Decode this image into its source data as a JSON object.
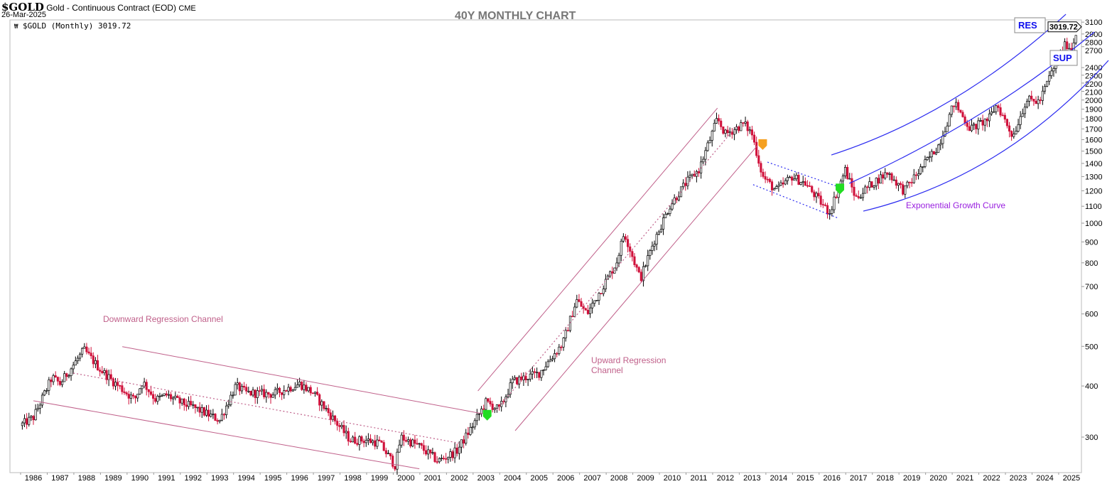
{
  "header": {
    "symbol": "$GOLD",
    "description": "Gold - Continuous Contract (EOD)",
    "exchange": "CME",
    "date": "26-Mar-2025",
    "legend": "$GOLD (Monthly) 3019.72"
  },
  "chart_data": {
    "type": "candlestick",
    "title": "40Y MONTHLY CHART",
    "scale": "log",
    "ylim": [
      255,
      3250
    ],
    "xlim": [
      1985.1,
      2025.5
    ],
    "last_price": "3019.72",
    "y_ticks": [
      3100,
      2900,
      2800,
      2700,
      2400,
      2300,
      2200,
      2100,
      2000,
      1900,
      1800,
      1700,
      1600,
      1500,
      1400,
      1300,
      1200,
      1100,
      1000,
      900,
      800,
      700,
      600,
      500,
      400,
      300
    ],
    "x_ticks": [
      1986,
      1987,
      1988,
      1989,
      1990,
      1991,
      1992,
      1993,
      1994,
      1995,
      1996,
      1997,
      1998,
      1999,
      2000,
      2001,
      2002,
      2003,
      2004,
      2005,
      2006,
      2007,
      2008,
      2009,
      2010,
      2011,
      2012,
      2013,
      2014,
      2015,
      2016,
      2017,
      2018,
      2019,
      2020,
      2021,
      2022,
      2023,
      2024,
      2025
    ],
    "price_path": [
      [
        1985.5,
        320
      ],
      [
        1986.0,
        335
      ],
      [
        1986.7,
        420
      ],
      [
        1987.0,
        405
      ],
      [
        1987.9,
        490
      ],
      [
        1988.5,
        440
      ],
      [
        1989.0,
        410
      ],
      [
        1989.8,
        370
      ],
      [
        1990.1,
        410
      ],
      [
        1990.6,
        370
      ],
      [
        1991.0,
        380
      ],
      [
        1991.5,
        365
      ],
      [
        1992.0,
        355
      ],
      [
        1993.0,
        330
      ],
      [
        1993.6,
        400
      ],
      [
        1994.0,
        385
      ],
      [
        1995.0,
        382
      ],
      [
        1996.0,
        405
      ],
      [
        1996.5,
        385
      ],
      [
        1997.0,
        350
      ],
      [
        1997.9,
        295
      ],
      [
        1998.5,
        295
      ],
      [
        1999.0,
        290
      ],
      [
        1999.6,
        255
      ],
      [
        1999.8,
        300
      ],
      [
        2000.5,
        285
      ],
      [
        2001.2,
        262
      ],
      [
        2001.9,
        277
      ],
      [
        2002.5,
        320
      ],
      [
        2003.0,
        365
      ],
      [
        2003.5,
        350
      ],
      [
        2004.0,
        410
      ],
      [
        2005.0,
        430
      ],
      [
        2005.9,
        510
      ],
      [
        2006.4,
        650
      ],
      [
        2006.8,
        600
      ],
      [
        2007.9,
        800
      ],
      [
        2008.2,
        950
      ],
      [
        2008.8,
        730
      ],
      [
        2009.3,
        900
      ],
      [
        2009.9,
        1100
      ],
      [
        2010.5,
        1250
      ],
      [
        2011.0,
        1350
      ],
      [
        2011.7,
        1800
      ],
      [
        2012.0,
        1650
      ],
      [
        2012.7,
        1750
      ],
      [
        2013.0,
        1650
      ],
      [
        2013.4,
        1300
      ],
      [
        2013.9,
        1200
      ],
      [
        2014.5,
        1300
      ],
      [
        2015.0,
        1250
      ],
      [
        2015.9,
        1060
      ],
      [
        2016.5,
        1350
      ],
      [
        2016.9,
        1150
      ],
      [
        2017.5,
        1250
      ],
      [
        2018.1,
        1330
      ],
      [
        2018.7,
        1200
      ],
      [
        2019.5,
        1400
      ],
      [
        2020.0,
        1550
      ],
      [
        2020.6,
        1970
      ],
      [
        2021.2,
        1700
      ],
      [
        2021.9,
        1800
      ],
      [
        2022.2,
        1950
      ],
      [
        2022.8,
        1630
      ],
      [
        2023.3,
        2000
      ],
      [
        2023.8,
        1980
      ],
      [
        2024.2,
        2300
      ],
      [
        2024.8,
        2750
      ],
      [
        2025.0,
        2650
      ],
      [
        2025.23,
        3020
      ]
    ],
    "annotations": {
      "downward_channel_label": "Downward Regression Channel",
      "upward_channel_label_1": "Upward Regression",
      "upward_channel_label_2": "Channel",
      "exp_curve_label": "Exponential Growth Curve",
      "res_label": "RES",
      "sup_label": "SUP"
    },
    "lines": [
      {
        "name": "down-channel-upper",
        "color": "#c0608a",
        "style": "solid",
        "points": [
          [
            1989.34,
            499
          ],
          [
            2003.0,
            341
          ]
        ]
      },
      {
        "name": "down-channel-lower",
        "color": "#c0608a",
        "style": "solid",
        "points": [
          [
            1986.0,
            368
          ],
          [
            2000.5,
            251
          ]
        ]
      },
      {
        "name": "down-channel-mid",
        "color": "#c0608a",
        "style": "dotted",
        "points": [
          [
            1987.5,
            430
          ],
          [
            2002.0,
            290
          ]
        ]
      },
      {
        "name": "up-channel-upper",
        "color": "#c0608a",
        "style": "solid",
        "points": [
          [
            2002.7,
            389
          ],
          [
            2011.7,
            1911
          ]
        ]
      },
      {
        "name": "up-channel-lower",
        "color": "#c0608a",
        "style": "solid",
        "points": [
          [
            2004.1,
            311
          ],
          [
            2013.2,
            1548
          ]
        ]
      },
      {
        "name": "up-channel-mid",
        "color": "#c0608a",
        "style": "dotted",
        "points": [
          [
            2003.4,
            350
          ],
          [
            2012.4,
            1720
          ]
        ]
      },
      {
        "name": "flag-upper",
        "color": "#2a2af0",
        "style": "dotted",
        "points": [
          [
            2013.58,
            1410
          ],
          [
            2016.25,
            1227
          ]
        ]
      },
      {
        "name": "flag-lower",
        "color": "#2a2af0",
        "style": "dotted",
        "points": [
          [
            2013.04,
            1242
          ],
          [
            2016.25,
            1028
          ]
        ]
      },
      {
        "name": "exp-upper",
        "color": "#2a2af0",
        "style": "curve",
        "points": [
          [
            2015.98,
            1468
          ],
          [
            2020.52,
            2004
          ],
          [
            2024.79,
            3241
          ]
        ]
      },
      {
        "name": "exp-mid",
        "color": "#2a2af0",
        "style": "curve",
        "points": [
          [
            2016.65,
            1251
          ],
          [
            2021.58,
            1851
          ],
          [
            2025.86,
            2933
          ]
        ]
      },
      {
        "name": "exp-lower",
        "color": "#2a2af0",
        "style": "curve",
        "points": [
          [
            2017.18,
            1070
          ],
          [
            2022.12,
            1456
          ],
          [
            2026.39,
            2499
          ]
        ]
      }
    ],
    "markers": [
      {
        "name": "green-arrow",
        "color": "#22dd22",
        "at": [
          2003.05,
          340
        ]
      },
      {
        "name": "orange-arrow",
        "color": "#f5a020",
        "at": [
          2013.4,
          1560
        ]
      },
      {
        "name": "green-arrow",
        "color": "#22dd22",
        "at": [
          2016.3,
          1215
        ]
      }
    ]
  }
}
